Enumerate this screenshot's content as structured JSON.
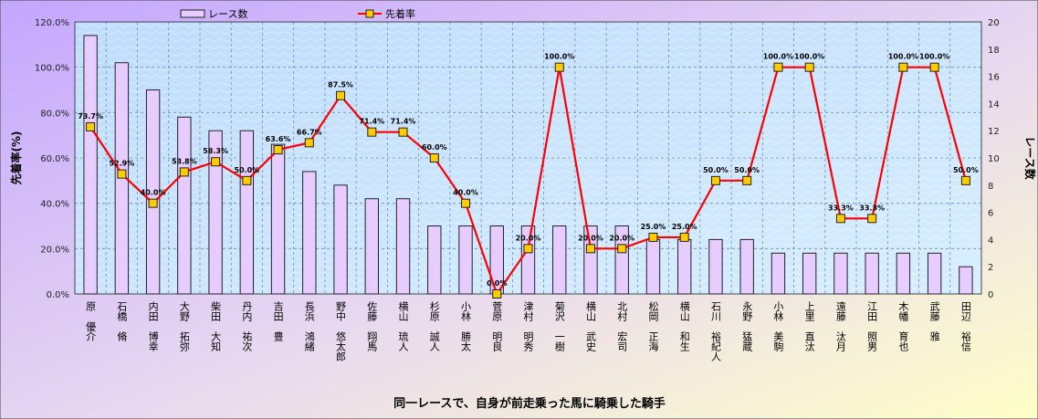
{
  "chart_data": {
    "type": "bar+line",
    "title": "同一レースで、自身が前走乗った馬に騎乗した騎手",
    "ylabel_left": "先着率(%)",
    "ylabel_right": "レース数",
    "ylim_left": [
      0,
      120
    ],
    "ylim_right": [
      0,
      20
    ],
    "yticks_left": [
      "0.0%",
      "20.0%",
      "40.0%",
      "60.0%",
      "80.0%",
      "100.0%",
      "120.0%"
    ],
    "yticks_right": [
      "0",
      "2",
      "4",
      "6",
      "8",
      "10",
      "12",
      "14",
      "16",
      "18",
      "20"
    ],
    "legend": {
      "position": "top",
      "bars": "レース数",
      "line": "先着率"
    },
    "colors": {
      "bar_fill": "#e6ccff",
      "bar_stroke": "#222222",
      "line": "#ff0000",
      "marker": "#ffcc00",
      "bg_top": "#c6a8ff",
      "bg_bottom": "#ffffd0",
      "plot_bg": "#cfe8ff"
    },
    "categories": [
      "原　優介",
      "石橋　脩",
      "内田　博幸",
      "大野　拓弥",
      "柴田　大知",
      "丹内　祐次",
      "吉田　豊",
      "長浜　鴻緒",
      "野中　悠太郎",
      "佐藤　翔馬",
      "横山　琉人",
      "杉原　誠人",
      "小林　勝太",
      "菅原　明良",
      "津村　明秀",
      "菊沢　一樹",
      "横山　武史",
      "北村　宏司",
      "松岡　正海",
      "横山　和生",
      "石川　裕紀人",
      "永野　猛蔵",
      "小林　美駒",
      "上里　直汰",
      "遠藤　汰月",
      "江田　照男",
      "木幡　育也",
      "武藤　雅",
      "田辺　裕信"
    ],
    "series": [
      {
        "name": "レース数",
        "type": "bar",
        "axis": "right",
        "values": [
          19,
          17,
          15,
          13,
          12,
          12,
          11,
          9,
          8,
          7,
          7,
          5,
          5,
          5,
          5,
          5,
          5,
          5,
          4,
          4,
          4,
          4,
          3,
          3,
          3,
          3,
          3,
          3,
          2
        ]
      },
      {
        "name": "先着率",
        "type": "line",
        "axis": "left",
        "values": [
          73.7,
          52.9,
          40.0,
          53.8,
          58.3,
          50.0,
          63.6,
          66.7,
          87.5,
          71.4,
          71.4,
          60.0,
          40.0,
          0.0,
          20.0,
          100.0,
          20.0,
          20.0,
          25.0,
          25.0,
          50.0,
          50.0,
          100.0,
          100.0,
          33.3,
          33.3,
          100.0,
          100.0,
          50.0
        ],
        "labels": [
          "73.7%",
          "52.9%",
          "40.0%",
          "53.8%",
          "58.3%",
          "50.0%",
          "63.6%",
          "66.7%",
          "87.5%",
          "71.4%",
          "71.4%",
          "60.0%",
          "40.0%",
          "0.0%",
          "20.0%",
          "100.0%",
          "20.0%",
          "20.0%",
          "25.0%",
          "25.0%",
          "50.0%",
          "50.0%",
          "100.0%",
          "100.0%",
          "33.3%",
          "33.3%",
          "100.0%",
          "100.0%",
          "50.0%"
        ]
      }
    ]
  }
}
